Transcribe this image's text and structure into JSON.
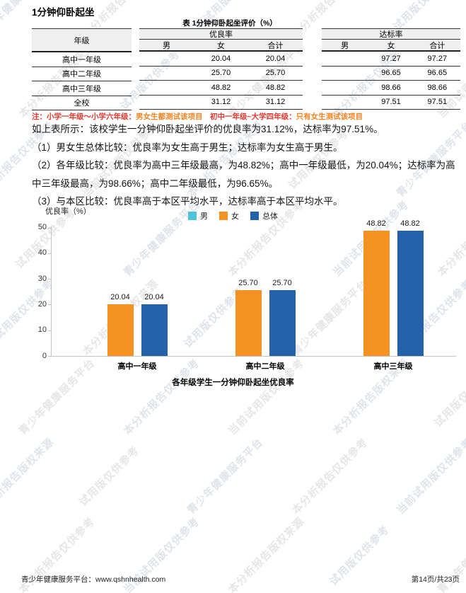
{
  "page": {
    "title": "1分钟仰卧起坐"
  },
  "table": {
    "caption": "表 1分钟仰卧起坐评价（%）",
    "grade_header": "年级",
    "group_headers": [
      "优良率",
      "达标率"
    ],
    "sub_headers": [
      "男",
      "女",
      "合计"
    ],
    "rows": [
      {
        "grade": "高中一年级",
        "excellent": [
          "",
          "20.04",
          "20.04"
        ],
        "pass": [
          "",
          "97.27",
          "97.27"
        ]
      },
      {
        "grade": "高中二年级",
        "excellent": [
          "",
          "25.70",
          "25.70"
        ],
        "pass": [
          "",
          "96.65",
          "96.65"
        ]
      },
      {
        "grade": "高中三年级",
        "excellent": [
          "",
          "48.82",
          "48.82"
        ],
        "pass": [
          "",
          "98.66",
          "98.66"
        ]
      },
      {
        "grade": "全校",
        "excellent": [
          "",
          "31.12",
          "31.12"
        ],
        "pass": [
          "",
          "97.51",
          "97.51"
        ]
      }
    ],
    "note_segments": [
      {
        "text": "注：小学一年级～小学六年级：",
        "color": "#e8382e"
      },
      {
        "text": "男女生都测试该项目",
        "color": "#f5821f"
      },
      {
        "text": "　初中一年级~大学四年级：",
        "color": "#e8382e"
      },
      {
        "text": "只有女生测试该项目",
        "color": "#f5821f"
      }
    ]
  },
  "paragraphs": [
    "如上表所示：该校学生一分钟仰卧起坐评价的优良率为31.12%，达标率为97.51%。",
    "（1）男女生总体比较：优良率为女生高于男生；达标率为女生高于男生。",
    "（2）各年级比较：优良率为高中三年级最高，为48.82%；高中一年级最低，为20.04%；达标率为高中三年级最高，为98.66%；高中二年级最低，为96.65%。",
    "（3）与本区比较：优良率高于本区平均水平，达标率高于本区平均水平。"
  ],
  "chart_data": {
    "type": "bar",
    "title": "各年级学生一分钟仰卧起坐优良率",
    "ylabel": "优良率（%）",
    "categories": [
      "高中一年级",
      "高中二年级",
      "高中三年级"
    ],
    "series": [
      {
        "name": "男",
        "color": "#4fc3d9",
        "values": [
          null,
          null,
          null
        ]
      },
      {
        "name": "女",
        "color": "#f59221",
        "values": [
          20.04,
          25.7,
          48.82
        ]
      },
      {
        "name": "总体",
        "color": "#2361a9",
        "values": [
          20.04,
          25.7,
          48.82
        ]
      }
    ],
    "value_label_format": "2dp",
    "ylim": [
      0,
      50
    ],
    "ytick_step": 10,
    "grid": false,
    "legend_position": "top-center"
  },
  "watermark": {
    "phrases": [
      "青少年健康服务平台",
      "本分析报告仅供参考",
      "当前试用版仅供参考",
      "本分析报告版权来源",
      "试用版仅供参考"
    ],
    "colors": [
      "rgba(150,165,190,0.30)",
      "rgba(172,176,182,0.32)"
    ]
  },
  "footer": {
    "left": "青少年健康服务平台：www.qshnhealth.com",
    "right": "第14页/共23页"
  }
}
